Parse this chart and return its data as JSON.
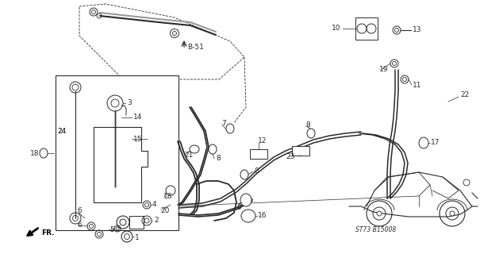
{
  "bg_color": "#ffffff",
  "line_color": "#2a2a2a",
  "fig_width": 6.34,
  "fig_height": 3.2,
  "dpi": 100,
  "ref_label": "ST73 B15008"
}
